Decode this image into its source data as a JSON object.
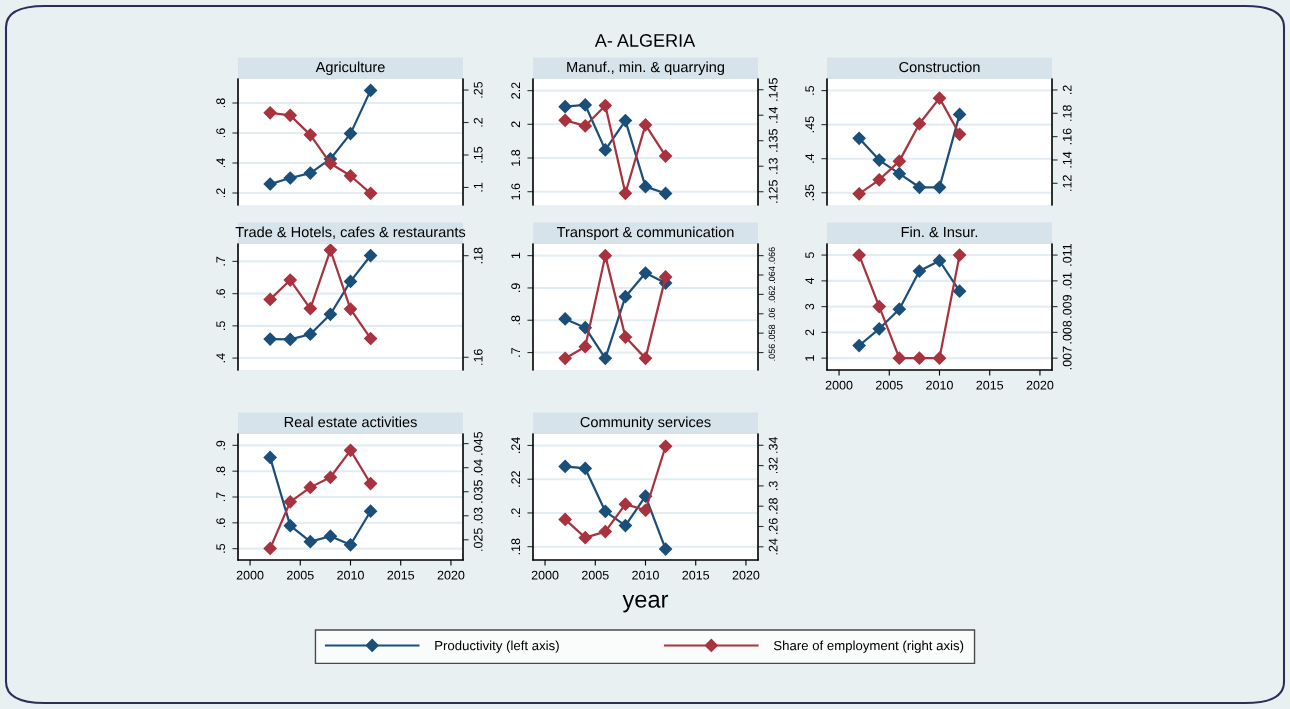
{
  "chart_data": [
    {
      "type": "line",
      "title": "Agriculture",
      "annotations": [
        "A- ALGERIA"
      ],
      "x": [
        2002,
        2004,
        2006,
        2008,
        2010,
        2012
      ],
      "xlim": [
        1998.8,
        2021.2
      ],
      "xticks": [
        2000,
        2005,
        2010,
        2015,
        2020
      ],
      "ylim": [
        0.12,
        0.96
      ],
      "yticks": [
        {
          "value": 0.2,
          "label": ".2"
        },
        {
          "value": 0.4,
          "label": ".4"
        },
        {
          "value": 0.6,
          "label": ".6"
        },
        {
          "value": 0.8,
          "label": ".8"
        }
      ],
      "y2lim": [
        0.073,
        0.267
      ],
      "y2ticks": [
        {
          "value": 0.1,
          "label": ".1"
        },
        {
          "value": 0.15,
          "label": ".15"
        },
        {
          "value": 0.2,
          "label": ".2"
        },
        {
          "value": 0.25,
          "label": ".25"
        }
      ],
      "tick_labels": "y",
      "grid": "y",
      "marker": "diamond",
      "line_style": "solid",
      "legend": "bottom",
      "series": [
        {
          "name": "Productivity (left axis)",
          "color": "#1a4f7a",
          "values": [
            0.26,
            0.3,
            0.333,
            0.427,
            0.596,
            0.884
          ]
        },
        {
          "name": "Share of employment (right axis)",
          "color": "#a8323e",
          "axis": "y2",
          "values": [
            0.215,
            0.211,
            0.181,
            0.137,
            0.118,
            0.091
          ]
        }
      ]
    },
    {
      "type": "line",
      "title": "Manuf., min. & quarrying",
      "x": [
        2002,
        2004,
        2006,
        2008,
        2010,
        2012
      ],
      "xlim": [
        1998.8,
        2021.2
      ],
      "xticks": [
        2000,
        2005,
        2010,
        2015,
        2020
      ],
      "ylim": [
        1.521,
        2.269
      ],
      "yticks": [
        1.6,
        1.8,
        2,
        2.2
      ],
      "y2lim": [
        0.1224,
        0.1471
      ],
      "y2ticks": [
        {
          "value": 0.125,
          "label": ".125"
        },
        {
          "value": 0.13,
          "label": ".13"
        },
        {
          "value": 0.135,
          "label": ".135"
        },
        {
          "value": 0.14,
          "label": ".14"
        },
        {
          "value": 0.145,
          "label": ".145"
        }
      ],
      "tick_labels": "y",
      "grid": "y",
      "marker": "diamond",
      "line_style": "solid",
      "series": [
        {
          "color": "#1a4f7a",
          "values": [
            2.105,
            2.115,
            1.848,
            2.022,
            1.63,
            1.59
          ]
        },
        {
          "color": "#a8323e",
          "axis": "y2",
          "values": [
            0.139,
            0.1379,
            0.1419,
            0.1247,
            0.1381,
            0.132
          ]
        }
      ]
    },
    {
      "type": "line",
      "title": "Construction",
      "x": [
        2002,
        2004,
        2006,
        2008,
        2010,
        2012
      ],
      "xlim": [
        1998.8,
        2021.2
      ],
      "xticks": [
        2000,
        2005,
        2010,
        2015,
        2020
      ],
      "ylim": [
        0.332,
        0.517
      ],
      "yticks": [
        {
          "value": 0.35,
          "label": ".35"
        },
        {
          "value": 0.4,
          "label": ".4"
        },
        {
          "value": 0.45,
          "label": ".45"
        },
        {
          "value": 0.5,
          "label": ".5"
        }
      ],
      "y2lim": [
        0.1014,
        0.2094
      ],
      "y2ticks": [
        {
          "value": 0.12,
          "label": ".12"
        },
        {
          "value": 0.14,
          "label": ".14"
        },
        {
          "value": 0.16,
          "label": ".16"
        },
        {
          "value": 0.18,
          "label": ".18"
        },
        {
          "value": 0.2,
          "label": ".2"
        }
      ],
      "tick_labels": "y",
      "grid": "y",
      "marker": "diamond",
      "line_style": "solid",
      "series": [
        {
          "color": "#1a4f7a",
          "values": [
            0.43,
            0.398,
            0.378,
            0.358,
            0.358,
            0.465
          ]
        },
        {
          "color": "#a8323e",
          "axis": "y2",
          "values": [
            0.111,
            0.123,
            0.139,
            0.171,
            0.193,
            0.162
          ]
        }
      ]
    },
    {
      "type": "line",
      "title": "Trade & Hotels, cafes & restaurants",
      "x": [
        2002,
        2004,
        2006,
        2008,
        2010,
        2012
      ],
      "xlim": [
        1998.8,
        2021.2
      ],
      "xticks": [
        2000,
        2005,
        2010,
        2015,
        2020
      ],
      "ylim": [
        0.363,
        0.754
      ],
      "yticks": [
        {
          "value": 0.4,
          "label": ".4"
        },
        {
          "value": 0.5,
          "label": ".5"
        },
        {
          "value": 0.6,
          "label": ".6"
        },
        {
          "value": 0.7,
          "label": ".7"
        }
      ],
      "y2lim": [
        0.1575,
        0.1823
      ],
      "y2ticks": [
        {
          "value": 0.16,
          "label": ".16"
        },
        {
          "value": 0.18,
          "label": ".18"
        }
      ],
      "tick_labels": "y",
      "grid": "y",
      "marker": "diamond",
      "line_style": "solid",
      "series": [
        {
          "color": "#1a4f7a",
          "values": [
            0.459,
            0.458,
            0.474,
            0.536,
            0.638,
            0.718
          ]
        },
        {
          "color": "#a8323e",
          "axis": "y2",
          "values": [
            0.1714,
            0.1752,
            0.1696,
            0.1811,
            0.1695,
            0.1637
          ]
        }
      ]
    },
    {
      "type": "line",
      "title": "Transport & communication",
      "x": [
        2002,
        2004,
        2006,
        2008,
        2010,
        2012
      ],
      "xlim": [
        1998.8,
        2021.2
      ],
      "xticks": [
        2000,
        2005,
        2010,
        2015,
        2020
      ],
      "ylim": [
        0.646,
        1.036
      ],
      "yticks": [
        {
          "value": 0.7,
          "label": ".7"
        },
        {
          "value": 0.8,
          "label": ".8"
        },
        {
          "value": 0.9,
          "label": ".9"
        },
        1
      ],
      "y2lim": [
        0.0542,
        0.0672
      ],
      "y2ticks": [
        {
          "value": 0.056,
          "label": ".056"
        },
        {
          "value": 0.058,
          "label": ".058"
        },
        {
          "value": 0.06,
          "label": ".06"
        },
        {
          "value": 0.062,
          "label": ".062"
        },
        {
          "value": 0.064,
          "label": ".064"
        },
        {
          "value": 0.066,
          "label": ".066"
        }
      ],
      "tick_labels": "y",
      "grid": "y",
      "marker": "diamond",
      "line_style": "solid",
      "series": [
        {
          "color": "#1a4f7a",
          "values": [
            0.804,
            0.777,
            0.682,
            0.873,
            0.946,
            0.915
          ]
        },
        {
          "color": "#a8323e",
          "axis": "y2",
          "values": [
            0.0554,
            0.0566,
            0.066,
            0.0576,
            0.0554,
            0.0638
          ]
        }
      ]
    },
    {
      "type": "line",
      "title": "Fin. & Insur.",
      "x": [
        2002,
        2004,
        2006,
        2008,
        2010,
        2012
      ],
      "xlim": [
        1998.8,
        2021.2
      ],
      "xticks": [
        2000,
        2005,
        2010,
        2015,
        2020
      ],
      "ylim": [
        0.54,
        5.43
      ],
      "yticks": [
        1,
        2,
        3,
        4,
        5
      ],
      "y2lim": [
        0.00654,
        0.01143
      ],
      "y2ticks": [
        {
          "value": 0.007,
          "label": ".007"
        },
        {
          "value": 0.008,
          "label": ".008"
        },
        {
          "value": 0.009,
          "label": ".009"
        },
        {
          "value": 0.01,
          "label": ".01"
        },
        {
          "value": 0.011,
          "label": ".011"
        }
      ],
      "grid": "y",
      "marker": "diamond",
      "line_style": "solid",
      "series": [
        {
          "color": "#1a4f7a",
          "values": [
            1.49,
            2.14,
            2.9,
            4.38,
            4.78,
            3.6
          ]
        },
        {
          "color": "#a8323e",
          "axis": "y2",
          "values": [
            0.011,
            0.009,
            0.007,
            0.007,
            0.007,
            0.011
          ]
        }
      ]
    },
    {
      "type": "line",
      "title": "Real estate activities",
      "x": [
        2002,
        2004,
        2006,
        2008,
        2010,
        2012
      ],
      "xlim": [
        1998.8,
        2021.2
      ],
      "xticks": [
        2000,
        2005,
        2010,
        2015,
        2020
      ],
      "ylim": [
        0.456,
        0.944
      ],
      "yticks": [
        {
          "value": 0.5,
          "label": ".5"
        },
        {
          "value": 0.6,
          "label": ".6"
        },
        {
          "value": 0.7,
          "label": ".7"
        },
        {
          "value": 0.8,
          "label": ".8"
        },
        {
          "value": 0.9,
          "label": ".9"
        }
      ],
      "y2lim": [
        0.0208,
        0.047
      ],
      "y2ticks": [
        {
          "value": 0.025,
          "label": ".025"
        },
        {
          "value": 0.03,
          "label": ".03"
        },
        {
          "value": 0.035,
          "label": ".035"
        },
        {
          "value": 0.04,
          "label": ".04"
        },
        {
          "value": 0.045,
          "label": ".045"
        }
      ],
      "grid": "y",
      "marker": "diamond",
      "line_style": "solid",
      "series": [
        {
          "color": "#1a4f7a",
          "values": [
            0.853,
            0.589,
            0.527,
            0.548,
            0.515,
            0.645
          ]
        },
        {
          "color": "#a8323e",
          "axis": "y2",
          "values": [
            0.0232,
            0.0329,
            0.0359,
            0.038,
            0.0436,
            0.0367
          ]
        }
      ]
    },
    {
      "type": "line",
      "title": "Community services",
      "xlabel": "year",
      "x": [
        2002,
        2004,
        2006,
        2008,
        2010,
        2012
      ],
      "xlim": [
        1998.8,
        2021.2
      ],
      "xticks": [
        2000,
        2005,
        2010,
        2015,
        2020
      ],
      "ylim": [
        0.1721,
        0.2468
      ],
      "yticks": [
        {
          "value": 0.18,
          "label": ".18"
        },
        {
          "value": 0.2,
          "label": ".2"
        },
        {
          "value": 0.22,
          "label": ".22"
        },
        {
          "value": 0.24,
          "label": ".24"
        }
      ],
      "y2lim": [
        0.227,
        0.3511
      ],
      "y2ticks": [
        {
          "value": 0.24,
          "label": ".24"
        },
        {
          "value": 0.26,
          "label": ".26"
        },
        {
          "value": 0.28,
          "label": ".28"
        },
        {
          "value": 0.3,
          "label": ".3"
        },
        {
          "value": 0.32,
          "label": ".32"
        },
        {
          "value": 0.34,
          "label": ".34"
        }
      ],
      "grid": "y",
      "marker": "diamond",
      "line_style": "solid",
      "series": [
        {
          "color": "#1a4f7a",
          "values": [
            0.2276,
            0.2264,
            0.2009,
            0.1925,
            0.2099,
            0.1786
          ]
        },
        {
          "color": "#a8323e",
          "axis": "y2",
          "values": [
            0.267,
            0.249,
            0.255,
            0.282,
            0.276,
            0.339
          ]
        }
      ]
    }
  ]
}
